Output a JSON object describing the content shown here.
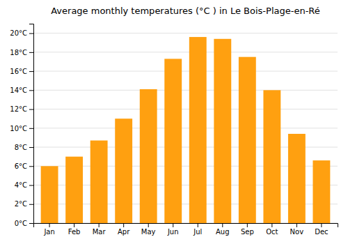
{
  "chart_data": {
    "type": "bar",
    "title": "Average monthly temperatures (°C ) in Le Bois-Plage-en-Ré",
    "categories": [
      "Jan",
      "Feb",
      "Mar",
      "Apr",
      "May",
      "Jun",
      "Jul",
      "Aug",
      "Sep",
      "Oct",
      "Nov",
      "Dec"
    ],
    "values": [
      6.0,
      7.0,
      8.7,
      11.0,
      14.1,
      17.3,
      19.6,
      19.4,
      17.5,
      14.0,
      9.4,
      6.6
    ],
    "color": "#FFA010",
    "ylim": [
      0,
      21
    ],
    "yticks": [
      {
        "value": 0,
        "label": "0°C"
      },
      {
        "value": 2,
        "label": "2°C"
      },
      {
        "value": 4,
        "label": "4°C"
      },
      {
        "value": 6,
        "label": "6°C"
      },
      {
        "value": 8,
        "label": "8°C"
      },
      {
        "value": 10,
        "label": "10°C"
      },
      {
        "value": 12,
        "label": "12°C"
      },
      {
        "value": 14,
        "label": "14°C"
      },
      {
        "value": 16,
        "label": "16°C"
      },
      {
        "value": 18,
        "label": "18°C"
      },
      {
        "value": 20,
        "label": "20°C"
      }
    ],
    "grid": true
  }
}
